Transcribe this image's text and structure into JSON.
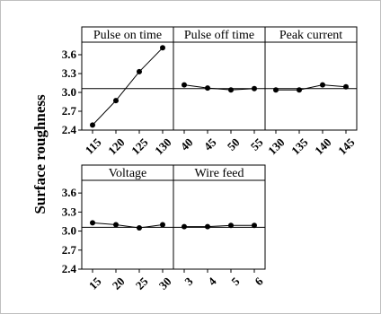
{
  "chart_data": {
    "type": "line",
    "ylabel": "Surface roughness",
    "y_ticks": [
      "2.4",
      "2.7",
      "3.0",
      "3.3",
      "3.6"
    ],
    "ylim": [
      2.4,
      3.8
    ],
    "reference_line": 3.06,
    "grid": false,
    "panels": [
      {
        "title": "Pulse on time",
        "categories": [
          "115",
          "120",
          "125",
          "130"
        ],
        "values": [
          2.48,
          2.87,
          3.33,
          3.71
        ]
      },
      {
        "title": "Pulse off time",
        "categories": [
          "40",
          "45",
          "50",
          "55"
        ],
        "values": [
          3.12,
          3.07,
          3.04,
          3.06
        ]
      },
      {
        "title": "Peak current",
        "categories": [
          "130",
          "135",
          "140",
          "145"
        ],
        "values": [
          3.04,
          3.04,
          3.12,
          3.09
        ]
      },
      {
        "title": "Voltage",
        "categories": [
          "15",
          "20",
          "25",
          "30"
        ],
        "values": [
          3.13,
          3.1,
          3.05,
          3.1
        ]
      },
      {
        "title": "Wire feed",
        "categories": [
          "3",
          "4",
          "5",
          "6"
        ],
        "values": [
          3.07,
          3.07,
          3.09,
          3.09
        ]
      }
    ]
  }
}
